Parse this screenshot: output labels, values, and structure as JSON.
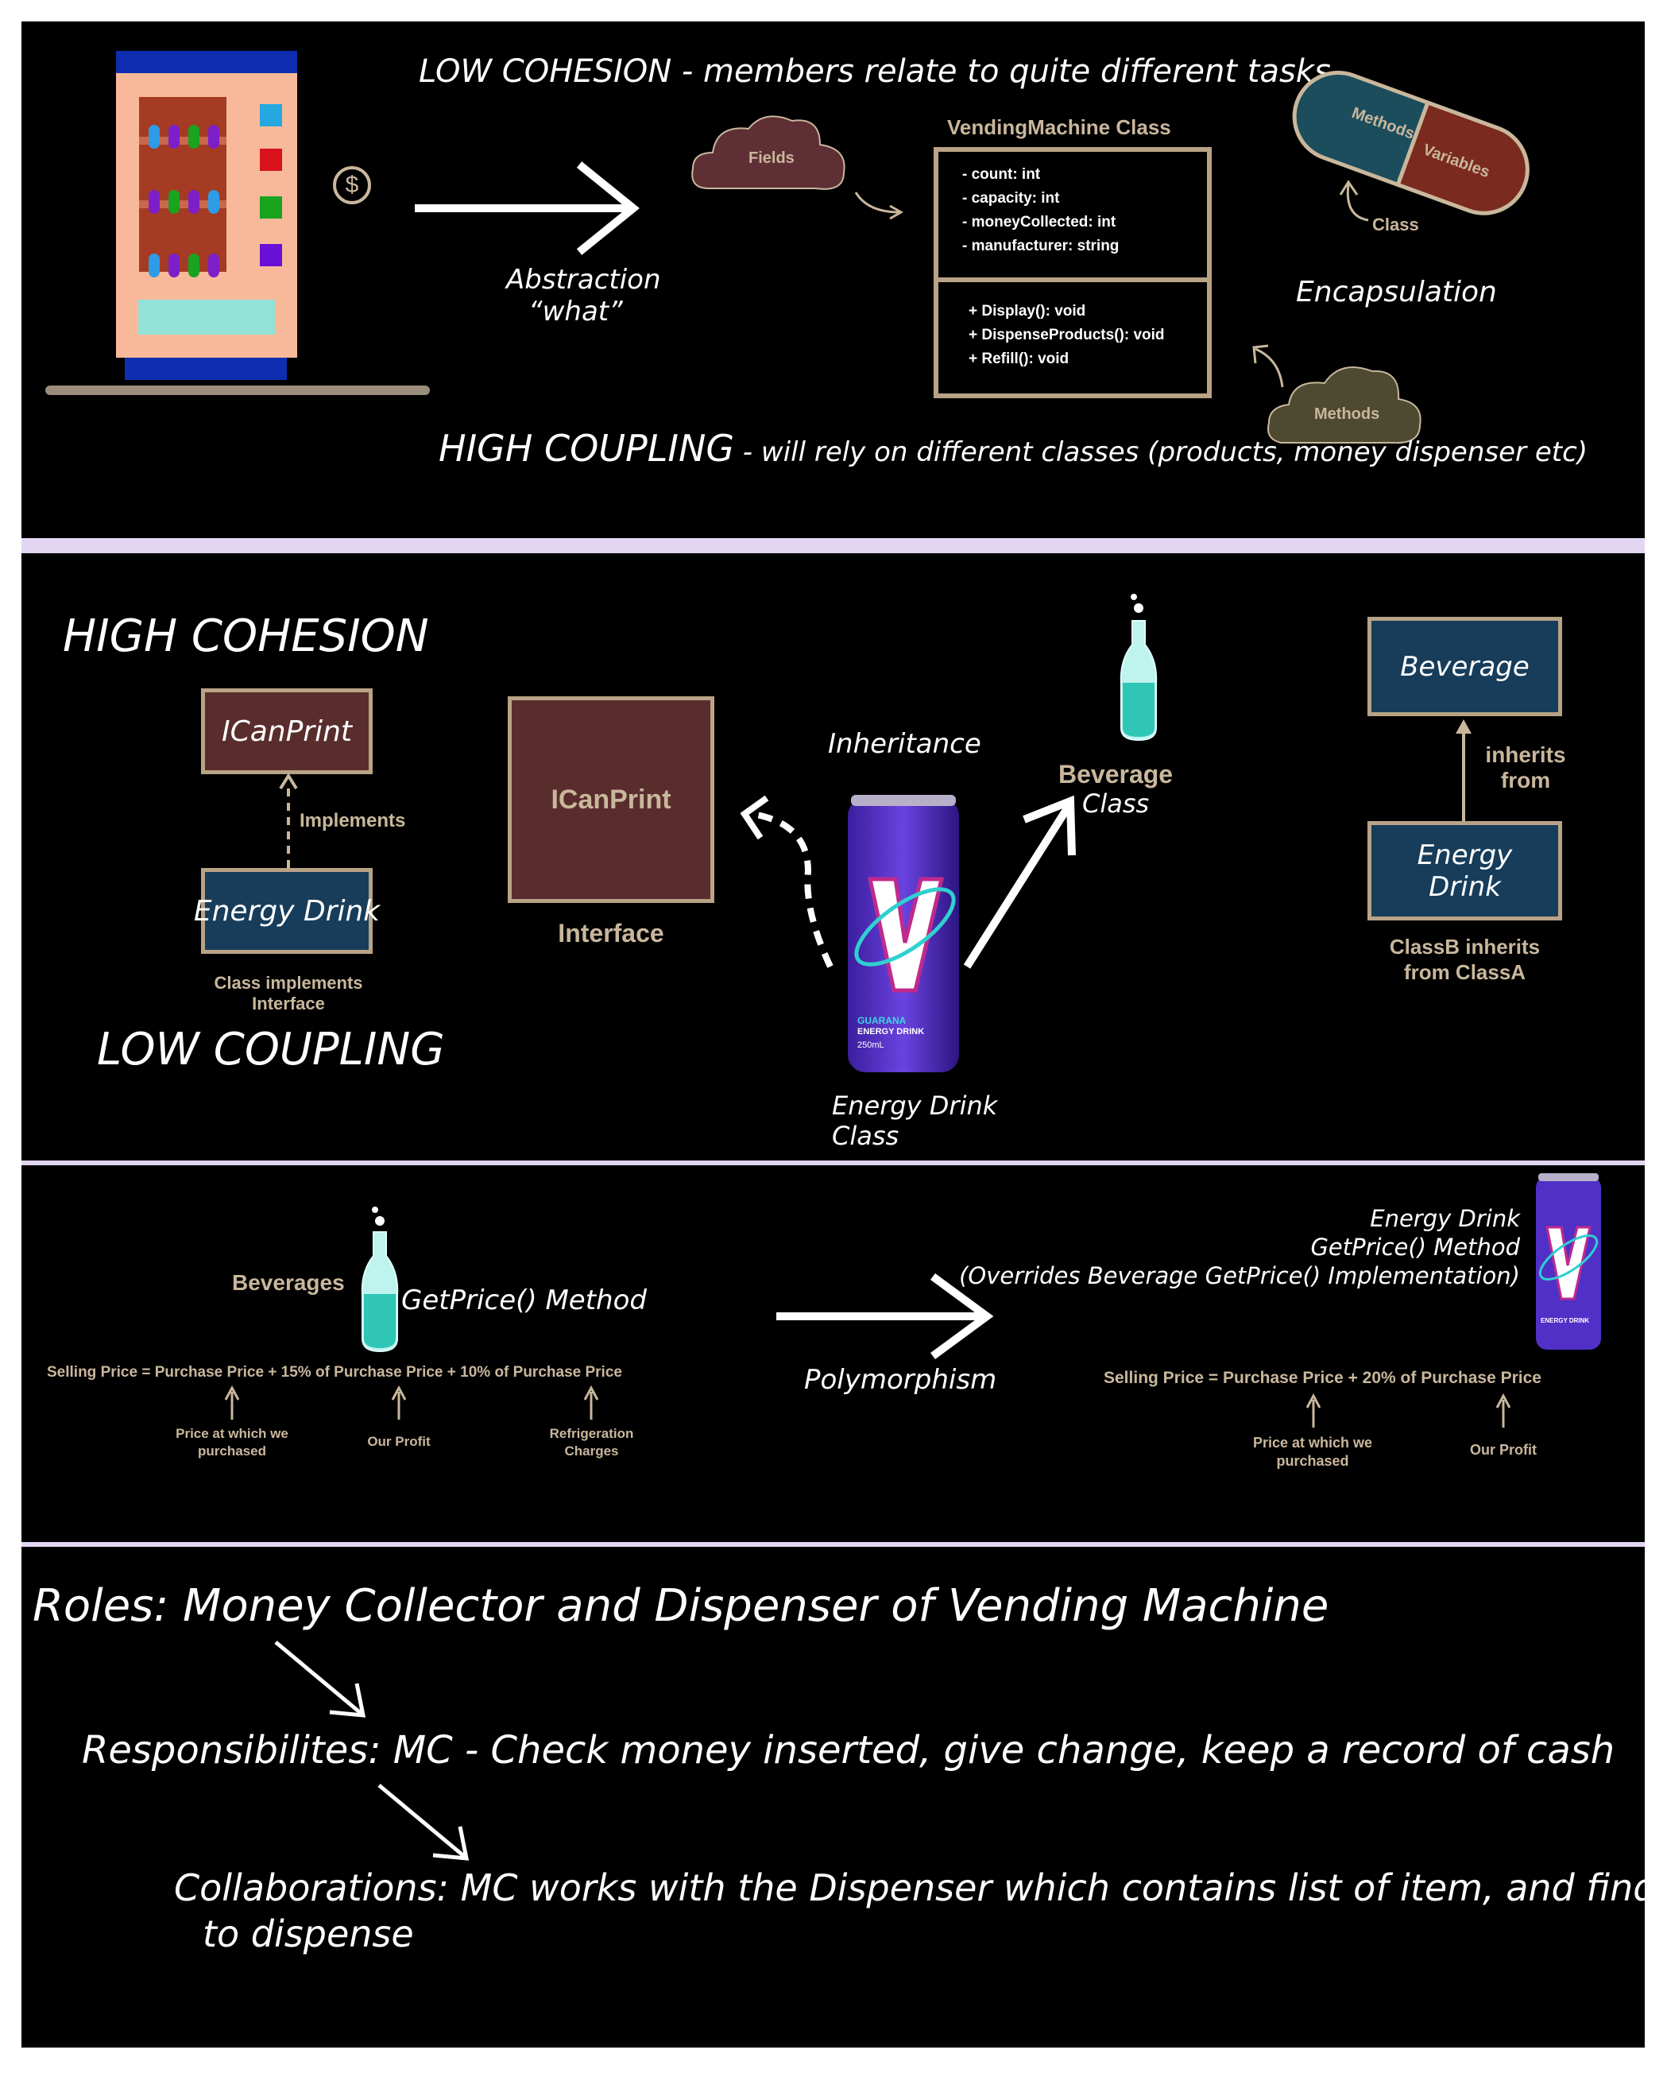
{
  "panel1": {
    "low_cohesion": "LOW COHESION - members relate to quite different tasks",
    "abstraction": "Abstraction",
    "abstraction_what": "“what”",
    "fields_cloud": "Fields",
    "methods_cloud": "Methods",
    "class_title": "VendingMachine Class",
    "class_fields": [
      "- count: int",
      "- capacity: int",
      "- moneyCollected: int",
      "- manufacturer: string"
    ],
    "class_methods": [
      "+ Display(): void",
      "+ DispenseProducts(): void",
      "+ Refill(): void"
    ],
    "pill_methods": "Methods",
    "pill_variables": "Variables",
    "pill_class": "Class",
    "encapsulation": "Encapsulation",
    "high_coupling": "HIGH COUPLING",
    "high_coupling_rest": " - will rely on different classes (products, money dispenser etc)",
    "coin_symbol": "$"
  },
  "panel2": {
    "high_cohesion": "HIGH COHESION",
    "low_coupling": "LOW COUPLING",
    "icanprint_small": "ICanPrint",
    "implements": "Implements",
    "energy_drink_small": "Energy Drink",
    "class_implements": "Class implements",
    "interface_word": "Interface",
    "icanprint_big": "ICanPrint",
    "interface_label": "Interface",
    "inheritance": "Inheritance",
    "beverage_label": "Beverage",
    "class_word": "Class",
    "energy_drink_class_1": "Energy Drink",
    "energy_drink_class_2": "Class",
    "beverage_box": "Beverage",
    "inherits_1": "inherits",
    "inherits_2": "from",
    "energy_box_1": "Energy",
    "energy_box_2": "Drink",
    "classb_1": "ClassB inherits",
    "classb_2": "from ClassA",
    "can_line1": "GUARANA",
    "can_line2": "ENERGY DRINK",
    "can_line3": "250mL"
  },
  "panel3": {
    "beverages": "Beverages",
    "getprice": "GetPrice() Method",
    "formula_left": "Selling Price = Purchase Price + 15% of Purchase Price + 10% of Purchase Price",
    "price_at_1": "Price at which we",
    "purchased_1": "purchased",
    "our_profit_1": "Our Profit",
    "refrigeration": "Refrigeration",
    "charges": "Charges",
    "polymorphism": "Polymorphism",
    "ed_line1": "Energy Drink",
    "ed_line2": "GetPrice() Method",
    "ed_line3": "(Overrides Beverage GetPrice() Implementation)",
    "formula_right": "Selling Price = Purchase Price + 20% of Purchase Price",
    "price_at_2": "Price at which we",
    "purchased_2": "purchased",
    "our_profit_2": "Our Profit"
  },
  "panel4": {
    "roles": "Roles: Money Collector and Dispenser of Vending Machine",
    "responsibilities": "Responsibilites: MC - Check money inserted, give change, keep a record of cash",
    "collab_1": "Collaborations: MC works with the Dispenser which contains list of item, and find the one",
    "collab_2": "to dispense"
  },
  "colors": {
    "tan": "#c9b79c",
    "maroon": "#5a2d2d",
    "navy": "#173d5b",
    "separator": "#e3d6f2",
    "pill_teal": "#1b4d5c",
    "pill_red": "#7a2a1f"
  }
}
